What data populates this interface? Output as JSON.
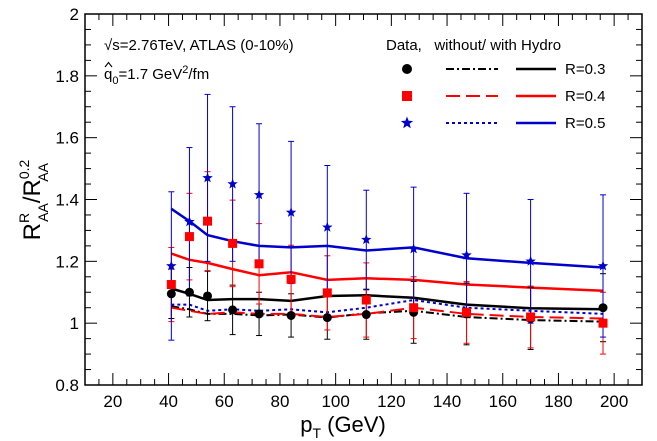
{
  "chart_data": {
    "type": "scatter",
    "xlim": [
      10,
      210
    ],
    "ylim": [
      0.8,
      2.0
    ],
    "x_ticks": [
      20,
      40,
      60,
      80,
      100,
      120,
      140,
      160,
      180,
      200
    ],
    "x_tick_labels": [
      "20",
      "40",
      "60",
      "80",
      "100",
      "120",
      "140",
      "160",
      "180",
      "200"
    ],
    "y_ticks": [
      0.8,
      1.0,
      1.2,
      1.4,
      1.6,
      1.8,
      2.0
    ],
    "y_tick_labels": [
      "0.8",
      "1",
      "1.2",
      "1.4",
      "1.6",
      "1.8",
      "2"
    ],
    "xlabel": {
      "main": "p",
      "sub": "T",
      "tail": " (GeV)"
    },
    "ylabel": {
      "r": "R",
      "aa1": "AA",
      "sup1": "R",
      "slash": "/R",
      "aa2": "AA",
      "sup2": "0.2"
    },
    "annotations": {
      "line1": "√s=2.76TeV, ATLAS (0-10%)",
      "q_hat": "q",
      "q_sub": "0",
      "q_eq": "=1.7 GeV",
      "q_sup": "2",
      "q_unit": "/fm"
    },
    "legend": {
      "header": "Data,   without/ with Hydro",
      "entries": [
        "R=0.3",
        "R=0.4",
        "R=0.5"
      ]
    },
    "colors": {
      "r03": "#000000",
      "r04": "#ff0000",
      "r05": "#0000cc"
    },
    "series": [
      {
        "name": "R=0.3",
        "color": "#000000",
        "marker": "circle",
        "data": {
          "x": [
            41,
            47.5,
            54,
            63,
            72.5,
            84,
            97,
            111,
            128,
            147,
            170,
            196
          ],
          "y": [
            1.095,
            1.1,
            1.088,
            1.043,
            1.03,
            1.025,
            1.018,
            1.028,
            1.035,
            1.03,
            1.015,
            1.05
          ],
          "err": [
            0.08,
            0.08,
            0.08,
            0.08,
            0.07,
            0.07,
            0.07,
            0.08,
            0.1,
            0.1,
            0.1,
            0.11
          ]
        },
        "without_hydro": {
          "x": [
            41,
            47.5,
            54,
            63,
            72.5,
            84,
            97,
            111,
            128,
            147,
            170,
            196
          ],
          "y": [
            1.055,
            1.045,
            1.03,
            1.03,
            1.025,
            1.028,
            1.018,
            1.032,
            1.04,
            1.02,
            1.01,
            1.005
          ]
        },
        "with_hydro": {
          "x": [
            41,
            47.5,
            54,
            63,
            72.5,
            84,
            97,
            111,
            128,
            147,
            170,
            196
          ],
          "y": [
            1.112,
            1.095,
            1.075,
            1.078,
            1.078,
            1.072,
            1.088,
            1.09,
            1.082,
            1.06,
            1.048,
            1.045
          ]
        }
      },
      {
        "name": "R=0.4",
        "color": "#ff0000",
        "marker": "square",
        "data": {
          "x": [
            41,
            47.5,
            54,
            63,
            72.5,
            84,
            97,
            111,
            128,
            147,
            170,
            196
          ],
          "y": [
            1.125,
            1.28,
            1.33,
            1.258,
            1.192,
            1.142,
            1.098,
            1.075,
            1.05,
            1.035,
            1.02,
            1.0
          ],
          "err": [
            0.12,
            0.14,
            0.16,
            0.14,
            0.13,
            0.11,
            0.12,
            0.12,
            0.1,
            0.1,
            0.1,
            0.1
          ]
        },
        "without_hydro": {
          "x": [
            41,
            47.5,
            54,
            63,
            72.5,
            84,
            97,
            111,
            128,
            147,
            170,
            196
          ],
          "y": [
            1.05,
            1.04,
            1.03,
            1.035,
            1.03,
            1.03,
            1.02,
            1.03,
            1.05,
            1.03,
            1.02,
            1.015
          ]
        },
        "with_hydro": {
          "x": [
            41,
            47.5,
            54,
            63,
            72.5,
            84,
            97,
            111,
            128,
            147,
            170,
            196
          ],
          "y": [
            1.225,
            1.205,
            1.195,
            1.175,
            1.155,
            1.165,
            1.14,
            1.145,
            1.14,
            1.125,
            1.115,
            1.105
          ]
        }
      },
      {
        "name": "R=0.5",
        "color": "#0000cc",
        "marker": "star",
        "data": {
          "x": [
            41,
            47.5,
            54,
            63,
            72.5,
            84,
            97,
            111,
            128,
            147,
            170,
            196
          ],
          "y": [
            1.185,
            1.328,
            1.47,
            1.45,
            1.415,
            1.358,
            1.31,
            1.27,
            1.24,
            1.22,
            1.2,
            1.185
          ],
          "err": [
            0.24,
            0.24,
            0.27,
            0.25,
            0.23,
            0.23,
            0.2,
            0.16,
            0.2,
            0.2,
            0.2,
            0.23
          ]
        },
        "without_hydro": {
          "x": [
            41,
            47.5,
            54,
            63,
            72.5,
            84,
            97,
            111,
            128,
            147,
            170,
            196
          ],
          "y": [
            1.06,
            1.06,
            1.04,
            1.045,
            1.04,
            1.045,
            1.035,
            1.05,
            1.075,
            1.05,
            1.04,
            1.03
          ]
        },
        "with_hydro": {
          "x": [
            41,
            47.5,
            54,
            63,
            72.5,
            84,
            97,
            111,
            128,
            147,
            170,
            196
          ],
          "y": [
            1.37,
            1.33,
            1.285,
            1.265,
            1.25,
            1.245,
            1.25,
            1.235,
            1.245,
            1.21,
            1.195,
            1.18
          ]
        }
      }
    ]
  }
}
